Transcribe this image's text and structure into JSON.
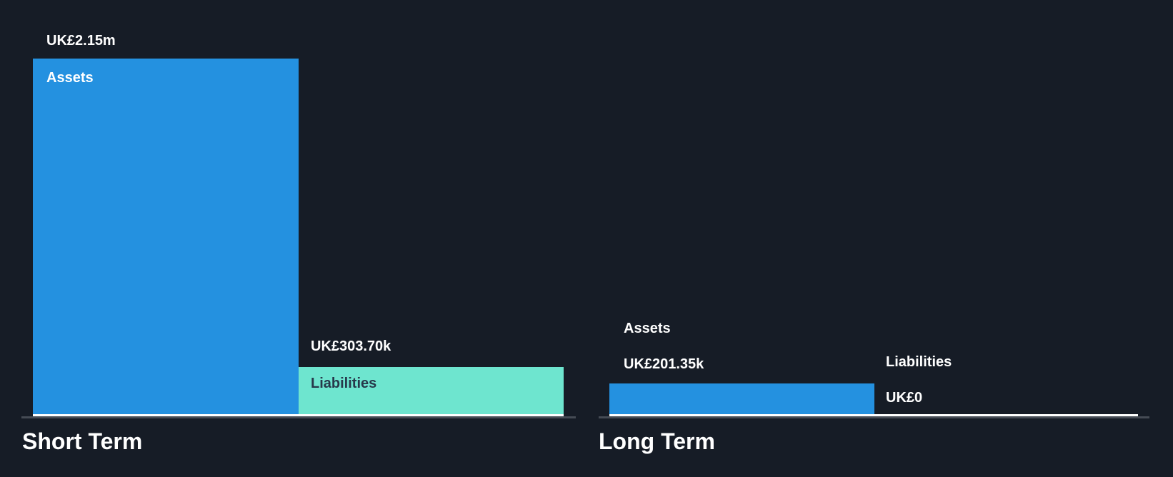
{
  "chart": {
    "colors": {
      "background": "#161c26",
      "assets_bar": "#2491e0",
      "liabilities_bar": "#6ee5cf",
      "label_light": "#ffffff",
      "label_dark": "#27384a",
      "zero_baseline": "#ffffff",
      "axis_gray": "#454b54"
    },
    "short_term": {
      "title": "Short Term",
      "assets_label": "Assets",
      "assets_value_label": "UK£2.15m",
      "liabilities_label": "Liabilities",
      "liabilities_value_label": "UK£303.70k"
    },
    "long_term": {
      "title": "Long Term",
      "assets_label": "Assets",
      "assets_value_label": "UK£201.35k",
      "liabilities_label": "Liabilities",
      "liabilities_value_label": "UK£0"
    }
  },
  "chart_data": {
    "type": "bar",
    "title": "Short Term vs Long Term Assets and Liabilities",
    "categories": [
      "Short Term",
      "Long Term"
    ],
    "series": [
      {
        "name": "Assets",
        "values": [
          2150000,
          201350
        ],
        "value_labels": [
          "UK£2.15m",
          "UK£201.35k"
        ],
        "color": "#2491e0"
      },
      {
        "name": "Liabilities",
        "values": [
          303700,
          0
        ],
        "value_labels": [
          "UK£303.70k",
          "UK£0"
        ],
        "color": "#6ee5cf"
      }
    ],
    "unit": "GBP",
    "currency_prefix": "UK£",
    "ylim": [
      0,
      2150000
    ],
    "grid": false,
    "legend_position": "none",
    "annotations": "Liabilities for Long Term are zero, drawn as a thin white baseline bar"
  }
}
